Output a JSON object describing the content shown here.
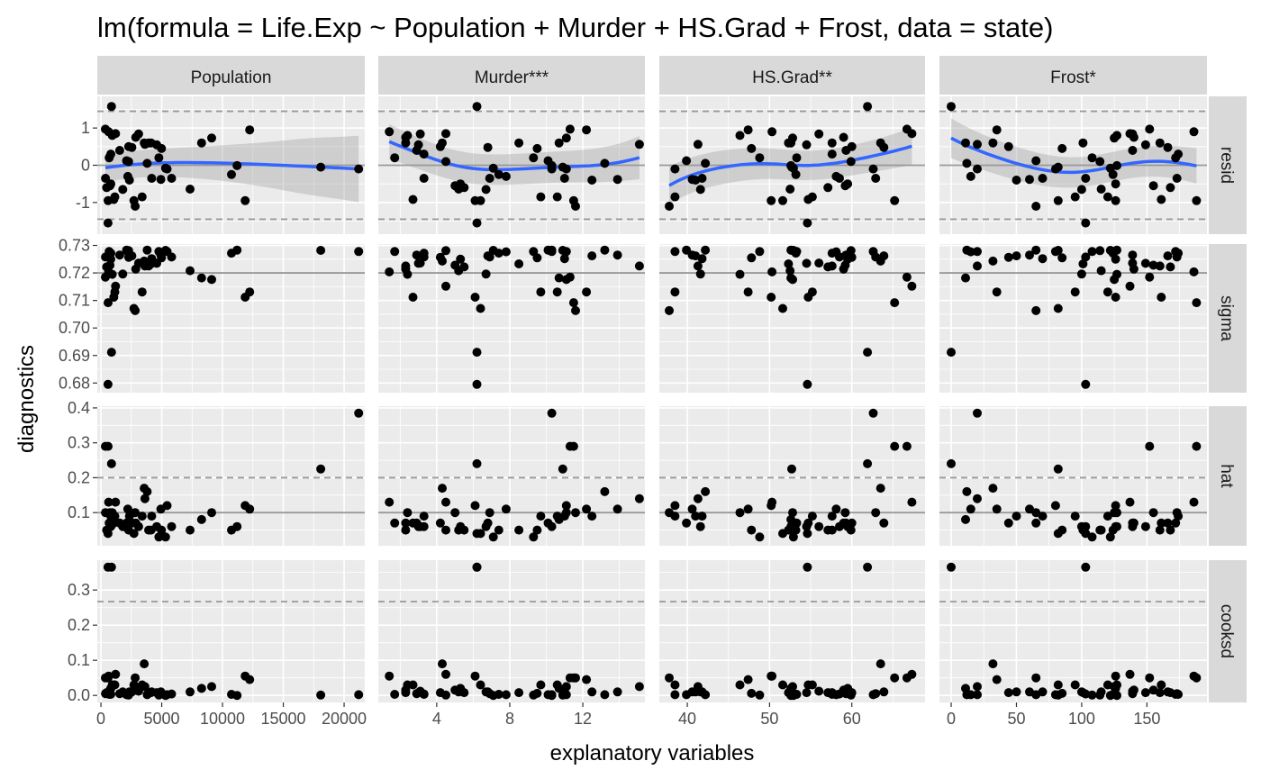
{
  "chart_data": {
    "type": "scatter",
    "title": "lm(formula = Life.Exp ~ Population + Murder + HS.Grad + Frost, data = state)",
    "xlabel": "explanatory variables",
    "ylabel": "diagnostics",
    "grid": true,
    "smoother_color": "#3366ff",
    "point_color": "#000000",
    "panel_background": "#ebebeb",
    "strip_background": "#d9d9d9",
    "columns": [
      {
        "label": "Population",
        "key": "pop",
        "xlim": [
          -300,
          21700
        ],
        "ticks": [
          0,
          5000,
          10000,
          15000,
          20000
        ],
        "tick_labels": [
          "0",
          "5000",
          "10000",
          "15000",
          "20000"
        ]
      },
      {
        "label": "Murder***",
        "key": "mur",
        "xlim": [
          0.8,
          15.4
        ],
        "ticks": [
          4,
          8,
          12
        ],
        "tick_labels": [
          "4",
          "8",
          "12"
        ]
      },
      {
        "label": "HS.Grad**",
        "key": "hs",
        "xlim": [
          36.6,
          68.9
        ],
        "ticks": [
          40,
          50,
          60
        ],
        "tick_labels": [
          "40",
          "50",
          "60"
        ]
      },
      {
        "label": "Frost*",
        "key": "fr",
        "xlim": [
          -9,
          196
        ],
        "ticks": [
          0,
          50,
          100,
          150
        ],
        "tick_labels": [
          "0",
          "50",
          "100",
          "150"
        ]
      }
    ],
    "rows": [
      {
        "label": "resid",
        "ylim": [
          -1.85,
          1.85
        ],
        "ticks": [
          -1,
          0,
          1
        ],
        "tick_labels": [
          "-1",
          "0",
          "1"
        ],
        "solid_line": 0,
        "dashed_lines": [
          -1.45,
          1.45
        ],
        "smooth": true
      },
      {
        "label": "sigma",
        "ylim": [
          0.6765,
          0.7305
        ],
        "ticks": [
          0.68,
          0.69,
          0.7,
          0.71,
          0.72,
          0.73
        ],
        "tick_labels": [
          "0.68",
          "0.69",
          "0.70",
          "0.71",
          "0.72",
          "0.73"
        ],
        "solid_line": 0.72,
        "dashed_lines": [],
        "smooth": false
      },
      {
        "label": "hat",
        "ylim": [
          0.005,
          0.405
        ],
        "ticks": [
          0.1,
          0.2,
          0.3,
          0.4
        ],
        "tick_labels": [
          "0.1",
          "0.2",
          "0.3",
          "0.4"
        ],
        "solid_line": 0.1,
        "dashed_lines": [
          0.2
        ],
        "smooth": false
      },
      {
        "label": "cooksd",
        "ylim": [
          -0.02,
          0.385
        ],
        "ticks": [
          0.0,
          0.1,
          0.2,
          0.3
        ],
        "tick_labels": [
          "0.0",
          "0.1",
          "0.2",
          "0.3"
        ],
        "solid_line": null,
        "dashed_lines": [
          0.267
        ],
        "smooth": false
      }
    ],
    "observations": [
      {
        "pop": 3615,
        "mur": 15.1,
        "hs": 41.3,
        "fr": 20,
        "resid": 0.56,
        "sigma": 0.7225,
        "hat": 0.14,
        "cooksd": 0.025
      },
      {
        "pop": 365,
        "mur": 11.3,
        "hs": 66.7,
        "fr": 152,
        "resid": 0.97,
        "sigma": 0.7185,
        "hat": 0.29,
        "cooksd": 0.05
      },
      {
        "pop": 2212,
        "mur": 7.8,
        "hs": 58.1,
        "fr": 15,
        "resid": -0.3,
        "sigma": 0.7277,
        "hat": 0.11,
        "cooksd": 0.002
      },
      {
        "pop": 2110,
        "mur": 10.1,
        "hs": 39.9,
        "fr": 65,
        "resid": 0.12,
        "sigma": 0.7283,
        "hat": 0.07,
        "cooksd": 0.002
      },
      {
        "pop": 21198,
        "mur": 10.3,
        "hs": 62.6,
        "fr": 20,
        "resid": -0.1,
        "sigma": 0.7278,
        "hat": 0.385,
        "cooksd": 0.002
      },
      {
        "pop": 2541,
        "mur": 6.8,
        "hs": 63.9,
        "fr": 166,
        "resid": 0.48,
        "sigma": 0.7262,
        "hat": 0.07,
        "cooksd": 0.01
      },
      {
        "pop": 3100,
        "mur": 3.1,
        "hs": 56.0,
        "fr": 139,
        "resid": 0.84,
        "sigma": 0.7236,
        "hat": 0.06,
        "cooksd": 0.012
      },
      {
        "pop": 579,
        "mur": 6.2,
        "hs": 54.6,
        "fr": 103,
        "resid": -1.55,
        "sigma": 0.6795,
        "hat": 0.04,
        "cooksd": 0.365
      },
      {
        "pop": 8277,
        "mur": 10.7,
        "hs": 52.6,
        "fr": 11,
        "resid": 0.6,
        "sigma": 0.7182,
        "hat": 0.08,
        "cooksd": 0.02
      },
      {
        "pop": 4931,
        "mur": 13.9,
        "hs": 40.6,
        "fr": 60,
        "resid": -0.38,
        "sigma": 0.7265,
        "hat": 0.11,
        "cooksd": 0.01
      },
      {
        "pop": 868,
        "mur": 6.2,
        "hs": 61.9,
        "fr": 0,
        "resid": 1.58,
        "sigma": 0.6912,
        "hat": 0.24,
        "cooksd": 0.365
      },
      {
        "pop": 813,
        "mur": 5.3,
        "hs": 59.5,
        "fr": 126,
        "resid": -0.5,
        "sigma": 0.725,
        "hat": 0.06,
        "cooksd": 0.02
      },
      {
        "pop": 11197,
        "mur": 10.3,
        "hs": 52.6,
        "fr": 127,
        "resid": -0.01,
        "sigma": 0.7283,
        "hat": 0.06,
        "cooksd": 0.0
      },
      {
        "pop": 5313,
        "mur": 7.1,
        "hs": 52.9,
        "fr": 122,
        "resid": -0.08,
        "sigma": 0.7282,
        "hat": 0.03,
        "cooksd": 0.0
      },
      {
        "pop": 2861,
        "mur": 2.3,
        "hs": 59.0,
        "fr": 140,
        "resid": 0.75,
        "sigma": 0.7214,
        "hat": 0.07,
        "cooksd": 0.015
      },
      {
        "pop": 2280,
        "mur": 4.5,
        "hs": 59.9,
        "fr": 114,
        "resid": 0.1,
        "sigma": 0.7281,
        "hat": 0.05,
        "cooksd": 0.001
      },
      {
        "pop": 3387,
        "mur": 10.6,
        "hs": 38.5,
        "fr": 95,
        "resid": -0.85,
        "sigma": 0.7131,
        "hat": 0.09,
        "cooksd": 0.03
      },
      {
        "pop": 3806,
        "mur": 13.2,
        "hs": 42.2,
        "fr": 12,
        "resid": 0.05,
        "sigma": 0.7283,
        "hat": 0.16,
        "cooksd": 0.002
      },
      {
        "pop": 1058,
        "mur": 2.7,
        "hs": 54.7,
        "fr": 161,
        "resid": -0.92,
        "sigma": 0.7112,
        "hat": 0.07,
        "cooksd": 0.03
      },
      {
        "pop": 4122,
        "mur": 8.5,
        "hs": 52.3,
        "fr": 101,
        "resid": 0.6,
        "sigma": 0.7233,
        "hat": 0.05,
        "cooksd": 0.008
      },
      {
        "pop": 5814,
        "mur": 3.3,
        "hs": 58.5,
        "fr": 103,
        "resid": -0.35,
        "sigma": 0.7258,
        "hat": 0.06,
        "cooksd": 0.004
      },
      {
        "pop": 9111,
        "mur": 11.1,
        "hs": 52.8,
        "fr": 125,
        "resid": 0.73,
        "sigma": 0.7176,
        "hat": 0.1,
        "cooksd": 0.025
      },
      {
        "pop": 3921,
        "mur": 2.3,
        "hs": 57.6,
        "fr": 160,
        "resid": 0.6,
        "sigma": 0.7225,
        "hat": 0.05,
        "cooksd": 0.008
      },
      {
        "pop": 2341,
        "mur": 12.5,
        "hs": 41.0,
        "fr": 50,
        "resid": -0.4,
        "sigma": 0.7262,
        "hat": 0.09,
        "cooksd": 0.01
      },
      {
        "pop": 4767,
        "mur": 9.3,
        "hs": 48.8,
        "fr": 108,
        "resid": 0.2,
        "sigma": 0.7278,
        "hat": 0.03,
        "cooksd": 0.001
      },
      {
        "pop": 746,
        "mur": 5.0,
        "hs": 59.2,
        "fr": 155,
        "resid": -0.55,
        "sigma": 0.7228,
        "hat": 0.1,
        "cooksd": 0.015
      },
      {
        "pop": 1544,
        "mur": 2.9,
        "hs": 59.3,
        "fr": 139,
        "resid": 0.4,
        "sigma": 0.7265,
        "hat": 0.07,
        "cooksd": 0.005
      },
      {
        "pop": 590,
        "mur": 11.5,
        "hs": 65.2,
        "fr": 188,
        "resid": -0.95,
        "sigma": 0.7092,
        "hat": 0.29,
        "cooksd": 0.05
      },
      {
        "pop": 812,
        "mur": 3.3,
        "hs": 57.6,
        "fr": 174,
        "resid": 0.3,
        "sigma": 0.7272,
        "hat": 0.09,
        "cooksd": 0.003
      },
      {
        "pop": 7333,
        "mur": 5.2,
        "hs": 52.5,
        "fr": 115,
        "resid": -0.64,
        "sigma": 0.7208,
        "hat": 0.05,
        "cooksd": 0.01
      },
      {
        "pop": 1144,
        "mur": 9.7,
        "hs": 55.2,
        "fr": 120,
        "resid": -0.85,
        "sigma": 0.7131,
        "hat": 0.09,
        "cooksd": 0.03
      },
      {
        "pop": 18076,
        "mur": 10.9,
        "hs": 52.7,
        "fr": 82,
        "resid": -0.05,
        "sigma": 0.7282,
        "hat": 0.225,
        "cooksd": 0.001
      },
      {
        "pop": 5441,
        "mur": 11.1,
        "hs": 38.5,
        "fr": 80,
        "resid": -0.1,
        "sigma": 0.7278,
        "hat": 0.12,
        "cooksd": 0.002
      },
      {
        "pop": 637,
        "mur": 1.4,
        "hs": 50.3,
        "fr": 186,
        "resid": 0.9,
        "sigma": 0.7204,
        "hat": 0.13,
        "cooksd": 0.055
      },
      {
        "pop": 10735,
        "mur": 7.4,
        "hs": 53.2,
        "fr": 124,
        "resid": -0.25,
        "sigma": 0.7272,
        "hat": 0.05,
        "cooksd": 0.003
      },
      {
        "pop": 2715,
        "mur": 6.4,
        "hs": 51.6,
        "fr": 82,
        "resid": -0.95,
        "sigma": 0.7071,
        "hat": 0.04,
        "cooksd": 0.03
      },
      {
        "pop": 2284,
        "mur": 4.2,
        "hs": 60.0,
        "fr": 44,
        "resid": 0.5,
        "sigma": 0.7257,
        "hat": 0.07,
        "cooksd": 0.008
      },
      {
        "pop": 11860,
        "mur": 6.1,
        "hs": 50.2,
        "fr": 126,
        "resid": -0.95,
        "sigma": 0.7112,
        "hat": 0.12,
        "cooksd": 0.055
      },
      {
        "pop": 931,
        "mur": 2.4,
        "hs": 46.4,
        "fr": 127,
        "resid": 0.8,
        "sigma": 0.7195,
        "hat": 0.1,
        "cooksd": 0.03
      },
      {
        "pop": 2816,
        "mur": 11.6,
        "hs": 37.8,
        "fr": 65,
        "resid": -1.1,
        "sigma": 0.7063,
        "hat": 0.1,
        "cooksd": 0.05
      },
      {
        "pop": 681,
        "mur": 1.7,
        "hs": 53.3,
        "fr": 172,
        "resid": 0.2,
        "sigma": 0.7278,
        "hat": 0.07,
        "cooksd": 0.003
      },
      {
        "pop": 4173,
        "mur": 11.0,
        "hs": 41.8,
        "fr": 70,
        "resid": -0.35,
        "sigma": 0.7252,
        "hat": 0.09,
        "cooksd": 0.01
      },
      {
        "pop": 12237,
        "mur": 12.2,
        "hs": 47.4,
        "fr": 35,
        "resid": 0.95,
        "sigma": 0.7131,
        "hat": 0.11,
        "cooksd": 0.045
      },
      {
        "pop": 1203,
        "mur": 4.5,
        "hs": 67.3,
        "fr": 137,
        "resid": 0.85,
        "sigma": 0.7152,
        "hat": 0.13,
        "cooksd": 0.06
      },
      {
        "pop": 472,
        "mur": 5.5,
        "hs": 57.1,
        "fr": 168,
        "resid": -0.6,
        "sigma": 0.7222,
        "hat": 0.05,
        "cooksd": 0.008
      },
      {
        "pop": 4981,
        "mur": 9.5,
        "hs": 47.8,
        "fr": 85,
        "resid": 0.45,
        "sigma": 0.7255,
        "hat": 0.05,
        "cooksd": 0.006
      },
      {
        "pop": 3559,
        "mur": 4.3,
        "hs": 63.5,
        "fr": 32,
        "resid": 0.6,
        "sigma": 0.7243,
        "hat": 0.17,
        "cooksd": 0.09
      },
      {
        "pop": 1799,
        "mur": 6.7,
        "hs": 41.6,
        "fr": 100,
        "resid": -0.65,
        "sigma": 0.7196,
        "hat": 0.06,
        "cooksd": 0.01
      },
      {
        "pop": 4589,
        "mur": 3.0,
        "hs": 54.5,
        "fr": 149,
        "resid": 0.55,
        "sigma": 0.7235,
        "hat": 0.06,
        "cooksd": 0.008
      },
      {
        "pop": 376,
        "mur": 6.9,
        "hs": 62.9,
        "fr": 173,
        "resid": -0.35,
        "sigma": 0.7258,
        "hat": 0.1,
        "cooksd": 0.005
      }
    ]
  }
}
